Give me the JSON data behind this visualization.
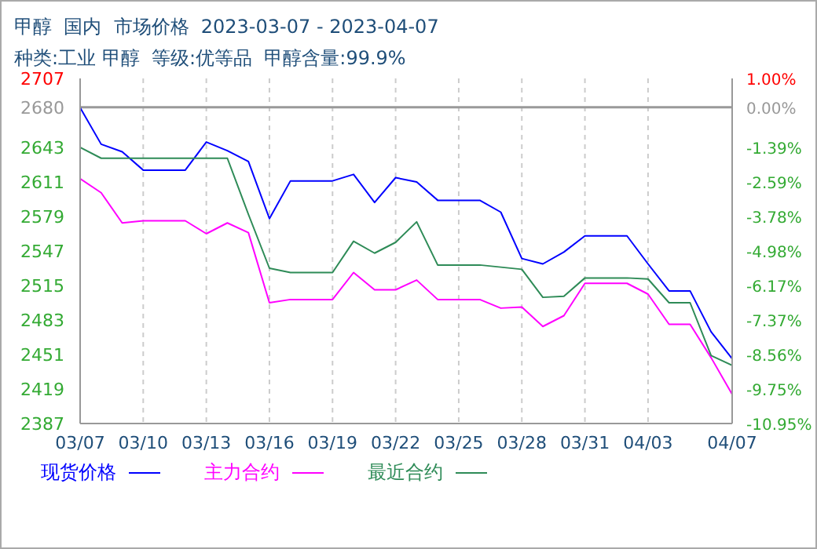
{
  "chart_data": {
    "type": "line",
    "title": "甲醇  国内  市场价格  2023-03-07 - 2023-04-07",
    "subtitle": "种类:工业 甲醇  等级:优等品  甲醇含量:99.9%",
    "x": [
      "2023-03-07",
      "2023-03-08",
      "2023-03-09",
      "2023-03-10",
      "2023-03-11",
      "2023-03-12",
      "2023-03-13",
      "2023-03-14",
      "2023-03-15",
      "2023-03-16",
      "2023-03-17",
      "2023-03-18",
      "2023-03-19",
      "2023-03-20",
      "2023-03-21",
      "2023-03-22",
      "2023-03-23",
      "2023-03-24",
      "2023-03-25",
      "2023-03-26",
      "2023-03-27",
      "2023-03-28",
      "2023-03-29",
      "2023-03-30",
      "2023-03-31",
      "2023-04-01",
      "2023-04-02",
      "2023-04-03",
      "2023-04-04",
      "2023-04-05",
      "2023-04-06",
      "2023-04-07"
    ],
    "series": [
      {
        "name": "现货价格",
        "color": "#0000ff",
        "values": [
          2680,
          2646,
          2639,
          2622,
          2622,
          2622,
          2648,
          2640,
          2630,
          2577,
          2612,
          2612,
          2612,
          2618,
          2592,
          2615,
          2611,
          2594,
          2594,
          2594,
          2583,
          2540,
          2535,
          2546,
          2561,
          2561,
          2561,
          2535,
          2510,
          2510,
          2472,
          2447
        ]
      },
      {
        "name": "主力合约",
        "color": "#ff00ff",
        "values": [
          2614,
          2601,
          2573,
          2575,
          2575,
          2575,
          2563,
          2573,
          2564,
          2499,
          2502,
          2502,
          2502,
          2527,
          2511,
          2511,
          2520,
          2502,
          2502,
          2502,
          2494,
          2495,
          2477,
          2487,
          2517,
          2517,
          2517,
          2507,
          2479,
          2479,
          2448,
          2414
        ]
      },
      {
        "name": "最近合约",
        "color": "#2e8b57",
        "values": [
          2643,
          2633,
          2633,
          2633,
          2633,
          2633,
          2633,
          2633,
          2581,
          2531,
          2527,
          2527,
          2527,
          2556,
          2545,
          2555,
          2574,
          2534,
          2534,
          2534,
          2532,
          2530,
          2504,
          2505,
          2522,
          2522,
          2522,
          2521,
          2499,
          2499,
          2450,
          2441
        ]
      }
    ],
    "xlim": [
      "2023-03-07",
      "2023-04-07"
    ],
    "xticks": [
      {
        "value": "2023-03-07",
        "label": "03/07"
      },
      {
        "value": "2023-03-10",
        "label": "03/10"
      },
      {
        "value": "2023-03-13",
        "label": "03/13"
      },
      {
        "value": "2023-03-16",
        "label": "03/16"
      },
      {
        "value": "2023-03-19",
        "label": "03/19"
      },
      {
        "value": "2023-03-22",
        "label": "03/22"
      },
      {
        "value": "2023-03-25",
        "label": "03/25"
      },
      {
        "value": "2023-03-28",
        "label": "03/28"
      },
      {
        "value": "2023-03-31",
        "label": "03/31"
      },
      {
        "value": "2023-04-03",
        "label": "04/03"
      },
      {
        "value": "2023-04-07",
        "label": "04/07"
      }
    ],
    "ylim": [
      2387,
      2707
    ],
    "yticks": [
      2387,
      2419,
      2451,
      2483,
      2515,
      2547,
      2579,
      2611,
      2643,
      2680,
      2707
    ],
    "y2lim": [
      -10.95,
      1.0
    ],
    "y2ticks": [
      {
        "value": -10.95,
        "label": "-10.95%"
      },
      {
        "value": -9.75,
        "label": "-9.75%"
      },
      {
        "value": -8.56,
        "label": "-8.56%"
      },
      {
        "value": -7.37,
        "label": "-7.37%"
      },
      {
        "value": -6.17,
        "label": "-6.17%"
      },
      {
        "value": -4.98,
        "label": "-4.98%"
      },
      {
        "value": -3.78,
        "label": "-3.78%"
      },
      {
        "value": -2.59,
        "label": "-2.59%"
      },
      {
        "value": -1.39,
        "label": "-1.39%"
      },
      {
        "value": 0,
        "label": "0.00%"
      },
      {
        "value": 1.0,
        "label": "1.00%"
      }
    ],
    "ref_lines": [
      {
        "axis": "y2",
        "value": 0,
        "color": "#999999"
      }
    ],
    "grid": true,
    "legend": "bottom",
    "marker": "none",
    "line_style": "solid"
  }
}
